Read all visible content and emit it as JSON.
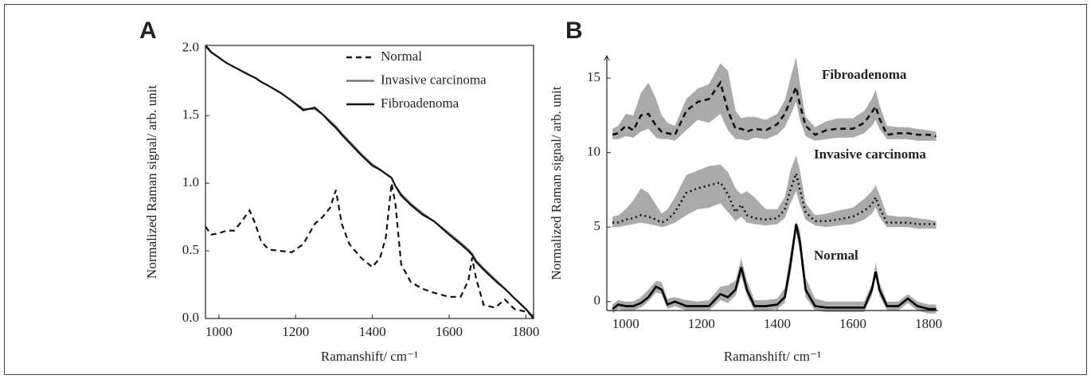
{
  "chart_data": [
    {
      "type": "line",
      "panel_label": "A",
      "x_label": "Ramanshift/ cm⁻¹",
      "y_label": "Normalized Raman signal/ arb. unit",
      "xlim": [
        965,
        1820
      ],
      "ylim": [
        0,
        2.02
      ],
      "xticks": [
        1000,
        1200,
        1400,
        1600,
        1800
      ],
      "yticks": [
        {
          "value": 0,
          "label": "0.0"
        },
        {
          "value": 0.5,
          "label": "0.5"
        },
        {
          "value": 1,
          "label": "1.0"
        },
        {
          "value": 1.5,
          "label": "1.5"
        },
        {
          "value": 2,
          "label": "2.0"
        }
      ],
      "legend": "top-right",
      "x": [
        965,
        980,
        1000,
        1020,
        1040,
        1060,
        1080,
        1095,
        1110,
        1130,
        1160,
        1190,
        1220,
        1250,
        1270,
        1290,
        1305,
        1320,
        1340,
        1370,
        1400,
        1420,
        1435,
        1450,
        1460,
        1475,
        1500,
        1530,
        1560,
        1600,
        1630,
        1650,
        1660,
        1670,
        1690,
        1720,
        1745,
        1770,
        1800,
        1820
      ],
      "series": [
        {
          "name": "Normal",
          "color": "#111111",
          "dash": "dashed",
          "values": [
            0.68,
            0.62,
            0.63,
            0.65,
            0.65,
            0.72,
            0.8,
            0.7,
            0.57,
            0.51,
            0.5,
            0.49,
            0.55,
            0.7,
            0.75,
            0.82,
            0.95,
            0.7,
            0.55,
            0.45,
            0.38,
            0.45,
            0.6,
            1.0,
            0.85,
            0.4,
            0.27,
            0.22,
            0.19,
            0.16,
            0.16,
            0.28,
            0.45,
            0.3,
            0.1,
            0.08,
            0.14,
            0.07,
            0.05,
            0.02
          ]
        },
        {
          "name": "Invasive carcinoma",
          "color": "#777777",
          "dash": "solid",
          "values": [
            2.01,
            1.97,
            1.93,
            1.89,
            1.86,
            1.83,
            1.8,
            1.78,
            1.75,
            1.72,
            1.67,
            1.61,
            1.55,
            1.55,
            1.51,
            1.46,
            1.42,
            1.37,
            1.31,
            1.22,
            1.14,
            1.1,
            1.07,
            1.04,
            0.98,
            0.92,
            0.85,
            0.78,
            0.72,
            0.63,
            0.56,
            0.51,
            0.48,
            0.43,
            0.37,
            0.29,
            0.22,
            0.15,
            0.07,
            0.01
          ]
        },
        {
          "name": "Fibroadenoma",
          "color": "#111111",
          "dash": "solid",
          "values": [
            2.02,
            1.97,
            1.93,
            1.89,
            1.86,
            1.83,
            1.8,
            1.78,
            1.75,
            1.72,
            1.67,
            1.61,
            1.54,
            1.56,
            1.51,
            1.45,
            1.41,
            1.36,
            1.3,
            1.21,
            1.13,
            1.1,
            1.07,
            1.04,
            0.98,
            0.91,
            0.84,
            0.77,
            0.72,
            0.62,
            0.55,
            0.5,
            0.47,
            0.42,
            0.36,
            0.28,
            0.22,
            0.15,
            0.07,
            0.0
          ]
        }
      ]
    },
    {
      "type": "band-line",
      "panel_label": "B",
      "x_label": "Ramanshift/ cm⁻¹",
      "y_label": "Normalized Raman signal/ arb. unit",
      "xlim": [
        950,
        1825
      ],
      "ylim": [
        -0.6,
        16.5
      ],
      "xticks": [
        1000,
        1200,
        1400,
        1600,
        1800
      ],
      "yticks": [
        0,
        5,
        10,
        15
      ],
      "band_color": "#aaaaaa",
      "x": [
        965,
        980,
        1000,
        1020,
        1040,
        1060,
        1080,
        1095,
        1110,
        1130,
        1160,
        1190,
        1220,
        1250,
        1270,
        1290,
        1305,
        1320,
        1340,
        1370,
        1400,
        1420,
        1435,
        1450,
        1460,
        1475,
        1500,
        1530,
        1560,
        1600,
        1630,
        1650,
        1660,
        1670,
        1690,
        1720,
        1745,
        1770,
        1800,
        1820
      ],
      "series": [
        {
          "name": "Fibroadenoma",
          "color": "#111111",
          "dash": "dashed",
          "values": [
            11.2,
            11.3,
            11.8,
            11.5,
            12.5,
            12.6,
            11.8,
            11.4,
            11.3,
            11.2,
            12.8,
            13.4,
            13.6,
            14.7,
            12.8,
            11.6,
            11.6,
            11.4,
            11.6,
            11.5,
            11.9,
            12.6,
            13.5,
            14.4,
            13.2,
            11.8,
            11.2,
            11.5,
            11.6,
            11.6,
            12.0,
            12.7,
            13.1,
            12.3,
            11.2,
            11.3,
            11.3,
            11.2,
            11.2,
            11.1
          ],
          "lower": [
            10.9,
            10.9,
            11.1,
            11.0,
            11.4,
            11.6,
            11.0,
            10.9,
            10.9,
            10.8,
            11.5,
            12.2,
            12.0,
            12.6,
            11.5,
            10.9,
            10.9,
            10.8,
            11.0,
            10.9,
            11.2,
            11.7,
            12.5,
            13.4,
            12.2,
            11.1,
            10.8,
            10.9,
            11.0,
            11.0,
            11.3,
            11.8,
            12.2,
            11.6,
            10.9,
            10.9,
            10.9,
            10.8,
            10.8,
            10.8
          ],
          "upper": [
            11.6,
            11.8,
            12.6,
            12.5,
            14.0,
            14.7,
            13.6,
            12.5,
            12.0,
            11.8,
            13.6,
            14.3,
            14.6,
            16.0,
            15.5,
            12.8,
            12.3,
            12.4,
            12.4,
            12.2,
            12.6,
            13.5,
            15.0,
            16.4,
            14.6,
            12.4,
            11.7,
            12.1,
            12.3,
            12.3,
            12.8,
            13.6,
            14.2,
            13.2,
            11.8,
            11.7,
            11.7,
            11.6,
            11.5,
            11.4
          ]
        },
        {
          "name": "Invasive carcinoma",
          "color": "#111111",
          "dash": "dotted",
          "values": [
            5.3,
            5.3,
            5.5,
            5.6,
            5.8,
            5.7,
            5.5,
            5.3,
            5.5,
            6.0,
            7.3,
            7.6,
            7.8,
            8.0,
            7.2,
            6.0,
            6.5,
            5.8,
            5.6,
            5.5,
            5.6,
            6.2,
            7.5,
            8.6,
            7.5,
            6.0,
            5.4,
            5.4,
            5.5,
            5.7,
            6.1,
            6.5,
            7.0,
            6.3,
            5.3,
            5.3,
            5.3,
            5.2,
            5.2,
            5.2
          ],
          "lower": [
            5.0,
            5.0,
            5.1,
            5.2,
            5.3,
            5.2,
            5.1,
            5.0,
            5.1,
            5.3,
            5.8,
            6.2,
            6.3,
            6.6,
            6.0,
            5.4,
            5.7,
            5.3,
            5.2,
            5.1,
            5.2,
            5.6,
            6.6,
            7.4,
            6.5,
            5.5,
            5.1,
            5.0,
            5.1,
            5.2,
            5.5,
            5.9,
            6.3,
            5.7,
            5.0,
            5.0,
            5.0,
            4.9,
            4.9,
            4.9
          ],
          "upper": [
            5.7,
            5.8,
            6.2,
            6.8,
            7.6,
            7.3,
            6.5,
            5.9,
            6.2,
            7.0,
            8.5,
            8.8,
            9.1,
            9.2,
            8.7,
            7.6,
            7.2,
            7.4,
            7.0,
            6.2,
            6.2,
            7.0,
            8.8,
            9.8,
            8.8,
            6.6,
            5.8,
            5.9,
            6.1,
            6.3,
            6.9,
            7.4,
            7.8,
            7.2,
            5.8,
            5.7,
            5.7,
            5.6,
            5.5,
            5.4
          ]
        },
        {
          "name": "Normal",
          "color": "#000000",
          "dash": "solid",
          "values": [
            -0.5,
            -0.2,
            -0.3,
            -0.3,
            -0.1,
            0.3,
            1.0,
            0.8,
            -0.2,
            0.0,
            -0.3,
            -0.3,
            -0.3,
            0.5,
            0.3,
            0.8,
            2.3,
            0.8,
            -0.3,
            -0.3,
            -0.2,
            0.3,
            2.5,
            5.2,
            4.0,
            0.8,
            -0.3,
            -0.4,
            -0.4,
            -0.4,
            -0.4,
            0.8,
            2.0,
            0.8,
            -0.3,
            -0.3,
            0.2,
            -0.3,
            -0.5,
            -0.5
          ],
          "lower": [
            -0.8,
            -0.5,
            -0.6,
            -0.6,
            -0.4,
            0.0,
            0.6,
            0.5,
            -0.5,
            -0.3,
            -0.6,
            -0.6,
            -0.6,
            0.1,
            -0.1,
            0.4,
            1.7,
            0.4,
            -0.6,
            -0.6,
            -0.5,
            -0.1,
            1.8,
            4.6,
            3.3,
            0.3,
            -0.6,
            -0.7,
            -0.7,
            -0.7,
            -0.7,
            0.4,
            1.6,
            0.4,
            -0.6,
            -0.6,
            -0.1,
            -0.6,
            -0.8,
            -0.8
          ],
          "upper": [
            -0.2,
            0.1,
            0.0,
            0.0,
            0.3,
            0.8,
            1.4,
            1.3,
            0.2,
            0.3,
            0.1,
            0.0,
            0.1,
            1.0,
            1.1,
            1.4,
            2.9,
            1.4,
            0.1,
            0.1,
            0.2,
            0.9,
            3.3,
            5.4,
            4.8,
            1.6,
            0.2,
            0.0,
            0.0,
            0.0,
            0.0,
            1.2,
            2.6,
            1.3,
            0.0,
            0.0,
            0.5,
            0.0,
            -0.2,
            -0.2
          ]
        }
      ]
    }
  ]
}
